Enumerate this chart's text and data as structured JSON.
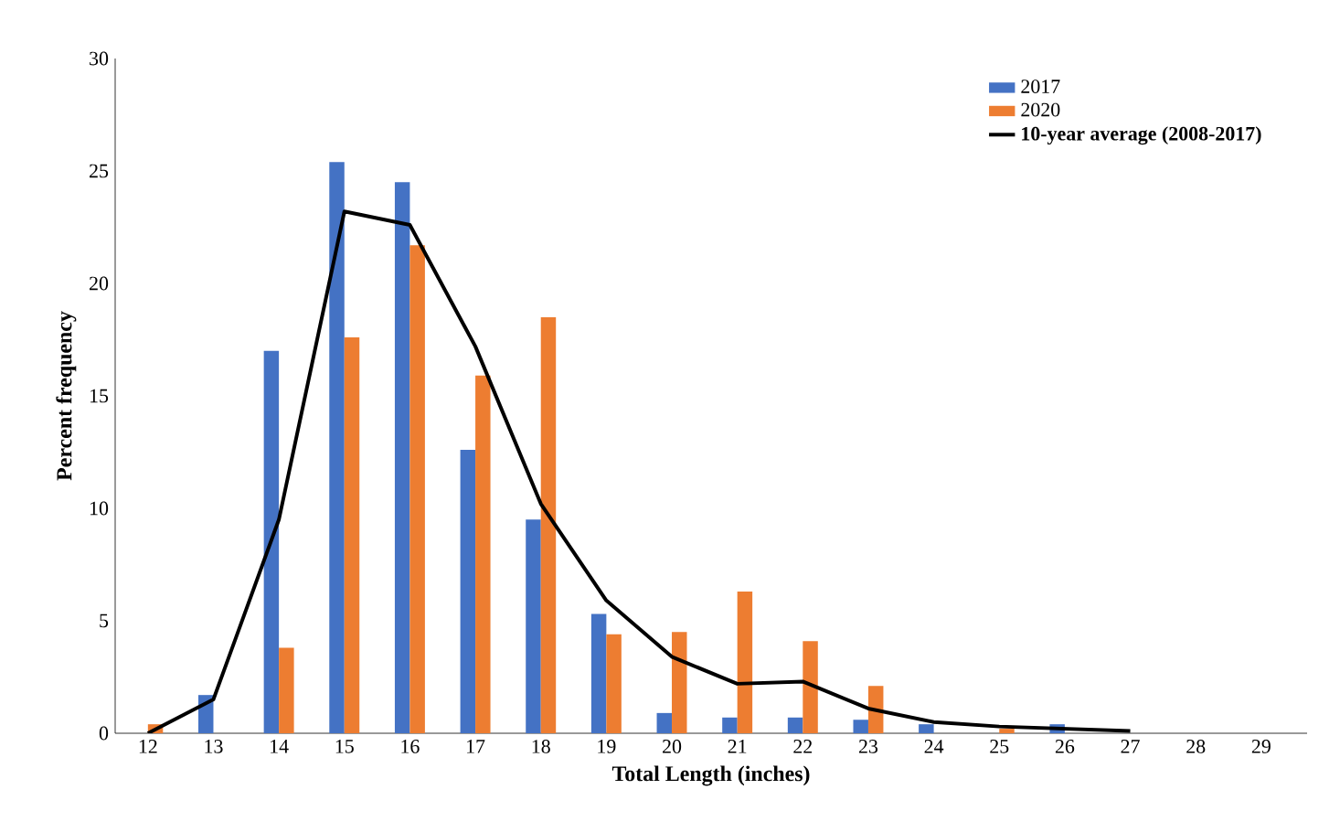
{
  "chart_data": {
    "type": "bar",
    "categories": [
      "12",
      "13",
      "14",
      "15",
      "16",
      "17",
      "18",
      "19",
      "20",
      "21",
      "22",
      "23",
      "24",
      "25",
      "26",
      "27",
      "28",
      "29"
    ],
    "series": [
      {
        "name": "2017",
        "color": "#4472c4",
        "values": [
          0,
          1.7,
          17,
          25.4,
          24.5,
          12.6,
          9.5,
          5.3,
          0.9,
          0.7,
          0.7,
          0.6,
          0.4,
          0,
          0.4,
          0,
          0,
          0
        ]
      },
      {
        "name": "2020",
        "color": "#ed7d31",
        "values": [
          0.4,
          0,
          3.8,
          17.6,
          21.7,
          15.9,
          18.5,
          4.4,
          4.5,
          6.3,
          4.1,
          2.1,
          0,
          0.2,
          0,
          0,
          0,
          0
        ]
      },
      {
        "name": "10-year average (2008-2017)",
        "type": "line",
        "color": "#000000",
        "values": [
          0,
          1.5,
          9.5,
          23.2,
          22.6,
          17.2,
          10.2,
          5.9,
          3.4,
          2.2,
          2.3,
          1.1,
          0.5,
          0.3,
          0.2,
          0.1,
          null,
          null
        ]
      }
    ],
    "xlabel": "Total Length (inches)",
    "ylabel": "Percent frequency",
    "ylim": [
      0,
      30
    ],
    "yticks": [
      0,
      5,
      10,
      15,
      20,
      25,
      30
    ],
    "legend": "top right"
  }
}
